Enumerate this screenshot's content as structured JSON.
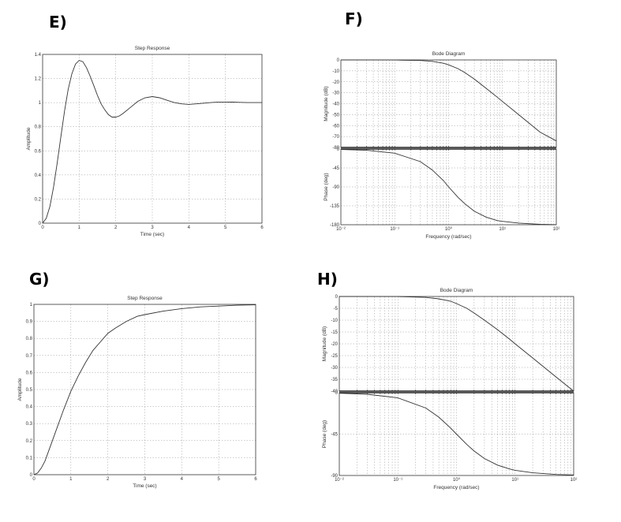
{
  "panels": {
    "E": "E)",
    "F": "F)",
    "G": "G)",
    "H": "H)"
  },
  "chart_data": [
    {
      "id": "E",
      "type": "line",
      "title": "Step Response",
      "xlabel": "Time (sec)",
      "ylabel": "Amplitude",
      "xlim": [
        0,
        6
      ],
      "ylim": [
        0,
        1.4
      ],
      "xticks": [
        "0",
        "1",
        "2",
        "3",
        "4",
        "5",
        "6"
      ],
      "yticks": [
        "0",
        "0.2",
        "0.4",
        "0.6",
        "0.8",
        "1",
        "1.2",
        "1.4"
      ],
      "grid": true,
      "series": [
        {
          "x": [
            0,
            0.1,
            0.2,
            0.3,
            0.4,
            0.5,
            0.6,
            0.7,
            0.8,
            0.9,
            1.0,
            1.1,
            1.2,
            1.3,
            1.4,
            1.5,
            1.6,
            1.7,
            1.8,
            1.9,
            2.0,
            2.1,
            2.2,
            2.4,
            2.6,
            2.8,
            3.0,
            3.2,
            3.4,
            3.6,
            3.8,
            4.0,
            4.2,
            4.4,
            4.6,
            4.8,
            5.0,
            5.2,
            5.4,
            5.6,
            5.8,
            6.0
          ],
          "y": [
            0,
            0.04,
            0.14,
            0.3,
            0.5,
            0.72,
            0.93,
            1.11,
            1.24,
            1.32,
            1.35,
            1.34,
            1.29,
            1.22,
            1.14,
            1.06,
            0.99,
            0.94,
            0.9,
            0.88,
            0.88,
            0.89,
            0.91,
            0.96,
            1.01,
            1.04,
            1.05,
            1.04,
            1.02,
            1.0,
            0.99,
            0.985,
            0.99,
            0.995,
            1.0,
            1.005,
            1.005,
            1.004,
            1.002,
            1.0,
            1.0,
            1.0
          ]
        }
      ]
    },
    {
      "id": "F",
      "type": "line",
      "title": "Bode Diagram",
      "xlabel": "Frequency  (rad/sec)",
      "mag_ylabel": "Magnitude (dB)",
      "phase_ylabel": "Phase (deg)",
      "xscale": "log",
      "xlim": [
        0.01,
        100
      ],
      "xticks": [
        "10⁻²",
        "10⁻¹",
        "10⁰",
        "10¹",
        "10²"
      ],
      "mag_ylim": [
        -80,
        0
      ],
      "mag_yticks": [
        "0",
        "-10",
        "-20",
        "-30",
        "-40",
        "-50",
        "-60",
        "-70",
        "-80"
      ],
      "phase_ylim": [
        -180,
        0
      ],
      "phase_yticks": [
        "0",
        "-45",
        "-90",
        "-135",
        "-180"
      ],
      "grid": true,
      "magnitude": {
        "w": [
          0.01,
          0.1,
          0.3,
          0.5,
          0.8,
          1,
          1.5,
          2,
          3,
          5,
          8,
          10,
          20,
          50,
          100
        ],
        "db": [
          0,
          -0.1,
          -0.5,
          -1.3,
          -3,
          -4.5,
          -8,
          -11.5,
          -17.5,
          -26,
          -34,
          -38,
          -50,
          -66,
          -74
        ]
      },
      "phase": {
        "w": [
          0.01,
          0.03,
          0.1,
          0.3,
          0.5,
          0.8,
          1,
          1.5,
          2,
          3,
          5,
          8,
          10,
          20,
          50,
          100
        ],
        "deg": [
          -1,
          -3,
          -10,
          -30,
          -50,
          -75,
          -90,
          -115,
          -130,
          -148,
          -162,
          -170,
          -172,
          -176,
          -179,
          -180
        ]
      }
    },
    {
      "id": "G",
      "type": "line",
      "title": "Step Response",
      "xlabel": "Time (sec)",
      "ylabel": "Amplitude",
      "xlim": [
        0,
        6
      ],
      "ylim": [
        0,
        1
      ],
      "xticks": [
        "0",
        "1",
        "2",
        "3",
        "4",
        "5",
        "6"
      ],
      "yticks": [
        "0",
        "0.1",
        "0.2",
        "0.3",
        "0.4",
        "0.5",
        "0.6",
        "0.7",
        "0.8",
        "0.9",
        "1"
      ],
      "grid": true,
      "series": [
        {
          "x": [
            0,
            0.1,
            0.2,
            0.3,
            0.4,
            0.5,
            0.6,
            0.8,
            1.0,
            1.2,
            1.4,
            1.6,
            1.8,
            2.0,
            2.2,
            2.5,
            2.8,
            3.0,
            3.5,
            4.0,
            4.5,
            5.0,
            5.5,
            6.0
          ],
          "y": [
            0,
            0.01,
            0.04,
            0.08,
            0.14,
            0.2,
            0.26,
            0.38,
            0.49,
            0.58,
            0.66,
            0.73,
            0.78,
            0.83,
            0.86,
            0.9,
            0.93,
            0.94,
            0.96,
            0.975,
            0.985,
            0.99,
            0.995,
            0.997
          ]
        }
      ]
    },
    {
      "id": "H",
      "type": "line",
      "title": "Bode Diagram",
      "xlabel": "Frequency  (rad/sec)",
      "mag_ylabel": "Magnitude (dB)",
      "phase_ylabel": "Phase (deg)",
      "xscale": "log",
      "xlim": [
        0.01,
        100
      ],
      "xticks": [
        "10⁻²",
        "10⁻¹",
        "10⁰",
        "10¹",
        "10²"
      ],
      "mag_ylim": [
        -40,
        0
      ],
      "mag_yticks": [
        "0",
        "-5",
        "-10",
        "-15",
        "-20",
        "-25",
        "-30",
        "-35",
        "-40"
      ],
      "phase_ylim": [
        -90,
        0
      ],
      "phase_yticks": [
        "0",
        "-45",
        "-90"
      ],
      "grid": true,
      "magnitude": {
        "w": [
          0.01,
          0.1,
          0.3,
          0.5,
          0.8,
          1,
          1.5,
          2,
          3,
          5,
          8,
          10,
          20,
          50,
          100
        ],
        "db": [
          0,
          -0.05,
          -0.4,
          -1,
          -2,
          -3,
          -5,
          -7,
          -10,
          -14,
          -18,
          -20,
          -26,
          -34,
          -40
        ]
      },
      "phase": {
        "w": [
          0.01,
          0.03,
          0.1,
          0.3,
          0.5,
          0.8,
          1,
          1.5,
          2,
          3,
          5,
          8,
          10,
          20,
          50,
          100
        ],
        "deg": [
          -0.6,
          -1.7,
          -5.7,
          -16.7,
          -26.6,
          -38.7,
          -45,
          -56.3,
          -63.4,
          -71.6,
          -78.7,
          -82.9,
          -84.3,
          -87.1,
          -88.9,
          -89.4
        ]
      }
    }
  ]
}
